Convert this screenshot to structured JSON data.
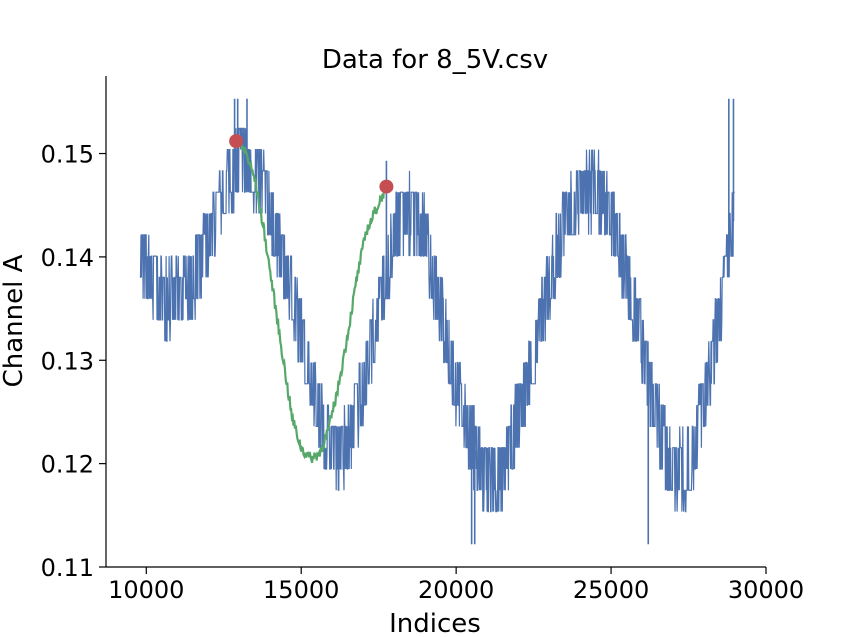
{
  "chart_data": {
    "type": "line",
    "title": "Data for 8_5V.csv",
    "xlabel": "Indices",
    "ylabel": "Channel A",
    "xlim": [
      8700,
      30000
    ],
    "ylim": [
      0.11,
      0.1575
    ],
    "x_ticks": [
      10000,
      15000,
      20000,
      25000,
      30000
    ],
    "x_tick_labels": [
      "10000",
      "15000",
      "20000",
      "25000",
      "30000"
    ],
    "y_ticks": [
      0.11,
      0.12,
      0.13,
      0.14,
      0.15
    ],
    "y_tick_labels": [
      "0.11",
      "0.12",
      "0.13",
      "0.14",
      "0.15"
    ],
    "grid": false,
    "series": [
      {
        "kind": "noisy-band",
        "color": "#4c72b0",
        "x": [
          9800,
          10000,
          10500,
          11000,
          11500,
          12000,
          12500,
          13000,
          13500,
          14000,
          14500,
          15000,
          15500,
          16000,
          16500,
          17000,
          17500,
          18000,
          18500,
          19000,
          19500,
          20000,
          20500,
          21000,
          21500,
          22000,
          22500,
          23000,
          23500,
          24000,
          24500,
          25000,
          25500,
          26000,
          26500,
          27000,
          27500,
          28000,
          28500,
          29000
        ],
        "center": [
          0.1405,
          0.1385,
          0.1362,
          0.136,
          0.1375,
          0.1415,
          0.146,
          0.1495,
          0.148,
          0.1445,
          0.1385,
          0.1325,
          0.1255,
          0.121,
          0.122,
          0.1275,
          0.1345,
          0.1425,
          0.1445,
          0.1425,
          0.1345,
          0.1275,
          0.122,
          0.1185,
          0.119,
          0.1245,
          0.1305,
          0.1375,
          0.143,
          0.146,
          0.1465,
          0.144,
          0.1385,
          0.1315,
          0.124,
          0.119,
          0.1195,
          0.126,
          0.134,
          0.1445
        ],
        "amplitude": 0.0035,
        "spikes": [
          {
            "x": 12850,
            "y": 0.1553
          },
          {
            "x": 12950,
            "y": 0.1553
          },
          {
            "x": 13250,
            "y": 0.1553
          },
          {
            "x": 17750,
            "y": 0.1493
          },
          {
            "x": 20500,
            "y": 0.1122
          },
          {
            "x": 20600,
            "y": 0.1122
          },
          {
            "x": 26200,
            "y": 0.1122
          },
          {
            "x": 28800,
            "y": 0.1553
          },
          {
            "x": 28950,
            "y": 0.1553
          }
        ]
      },
      {
        "kind": "line",
        "color": "#55a868",
        "x": [
          12900,
          13200,
          13500,
          13800,
          14100,
          14400,
          14700,
          15000,
          15300,
          15600,
          15900,
          16200,
          16500,
          16800,
          17100,
          17400,
          17700
        ],
        "y": [
          0.1512,
          0.1502,
          0.1475,
          0.1425,
          0.1365,
          0.1305,
          0.1245,
          0.1215,
          0.1205,
          0.121,
          0.1235,
          0.1275,
          0.1325,
          0.138,
          0.1425,
          0.1445,
          0.1465
        ]
      },
      {
        "kind": "points",
        "color": "#c44e52",
        "x": [
          12900,
          17750
        ],
        "y": [
          0.1512,
          0.1468
        ]
      }
    ]
  }
}
